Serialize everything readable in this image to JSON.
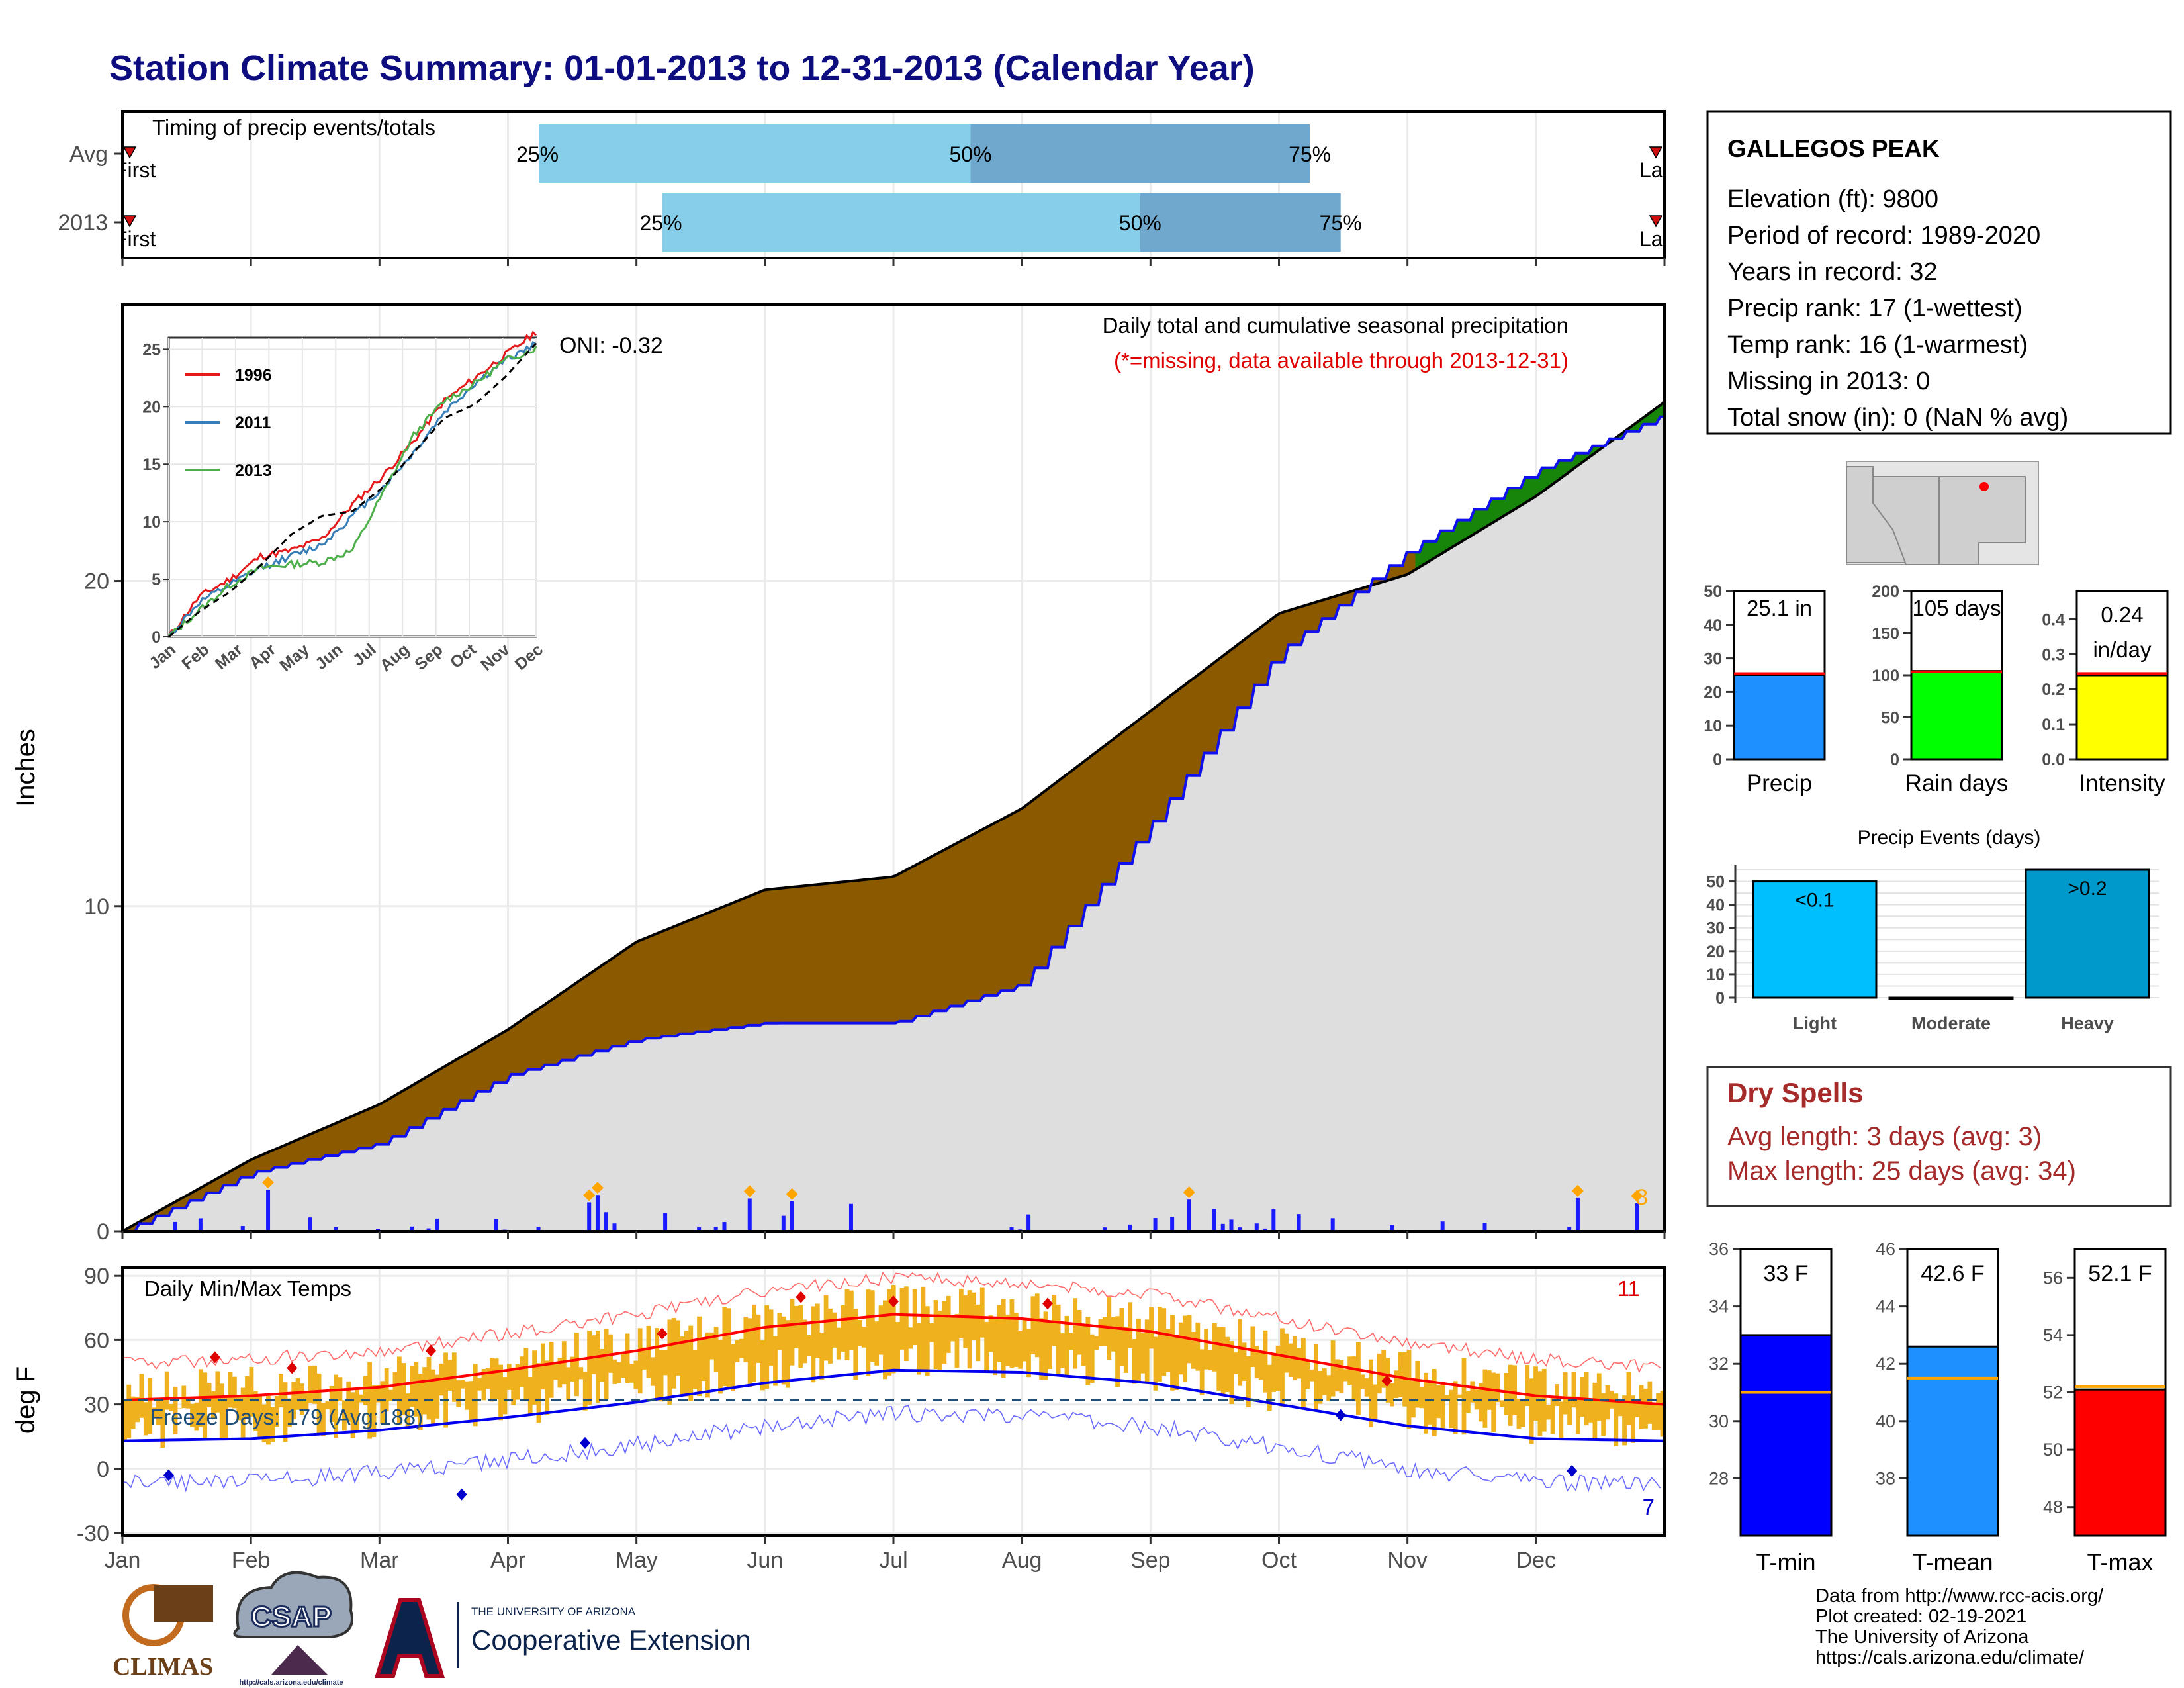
{
  "title": "Station Climate Summary: 01-01-2013 to 12-31-2013 (Calendar Year)",
  "timing_panel": {
    "label": "Timing of precip events/totals",
    "rows": [
      {
        "name": "Avg",
        "first": "First",
        "last": "Last",
        "p25": 0.27,
        "p50": 0.55,
        "p75": 0.77,
        "p25_label": "25%",
        "p50_label": "50%",
        "p75_label": "75%"
      },
      {
        "name": "2013",
        "first": "First",
        "last": "Last",
        "p25": 0.35,
        "p50": 0.66,
        "p75": 0.79,
        "p25_label": "25%",
        "p50_label": "50%",
        "p75_label": "75%"
      }
    ],
    "colors": {
      "light": "#87ceeb",
      "dark": "#6fa8cc",
      "marker": "#d01010"
    }
  },
  "station": {
    "name": "GALLEGOS PEAK",
    "lines": [
      "Elevation (ft): 9800",
      "Period of record: 1989-2020",
      "Years in record: 32",
      "Precip rank: 17 (1-wettest)",
      "Temp rank: 16 (1-warmest)",
      "Missing in 2013: 0",
      "Total snow (in): 0 (NaN % avg)"
    ]
  },
  "main_chart": {
    "ylabel": "Inches",
    "subtitle": "Daily total and cumulative seasonal precipitation",
    "missing_note": "(*=missing, data available through 2013-12-31)",
    "oni": "ONI: -0.32",
    "corner_count": "8",
    "yticks": [
      "0",
      "10",
      "20"
    ]
  },
  "inset": {
    "yticks": [
      "0",
      "5",
      "10",
      "15",
      "20",
      "25"
    ],
    "months": [
      "Jan",
      "Feb",
      "Mar",
      "Apr",
      "May",
      "Jun",
      "Jul",
      "Aug",
      "Sep",
      "Oct",
      "Nov",
      "Dec"
    ],
    "legend": [
      {
        "name": "1996",
        "color": "#e41a1c"
      },
      {
        "name": "2011",
        "color": "#377eb8"
      },
      {
        "name": "2013",
        "color": "#4daf4a"
      }
    ]
  },
  "temp_chart": {
    "ylabel": "deg F",
    "label": "Daily Min/Max Temps",
    "freeze": "Freeze Days: 179 (Avg:188)",
    "count_high": "11",
    "count_low": "7",
    "yticks": [
      "-30",
      "0",
      "30",
      "60",
      "90"
    ],
    "months": [
      "Jan",
      "Feb",
      "Mar",
      "Apr",
      "May",
      "Jun",
      "Jul",
      "Aug",
      "Sep",
      "Oct",
      "Nov",
      "Dec"
    ]
  },
  "gauges_top": [
    {
      "label": "Precip",
      "value_text": "25.1 in",
      "value": 25.1,
      "avg": 25.5,
      "min": 0,
      "max": 50,
      "ticks": [
        "0",
        "10",
        "20",
        "30",
        "40",
        "50"
      ],
      "color": "#1e90ff"
    },
    {
      "label": "Rain days",
      "value_text": "105 days",
      "value": 105,
      "avg": 104,
      "min": 0,
      "max": 200,
      "ticks": [
        "0",
        "50",
        "100",
        "150",
        "200"
      ],
      "color": "#00ff00"
    },
    {
      "label": "Intensity",
      "value_text": "0.24 in/day",
      "value_line1": "0.24",
      "value_line2": "in/day",
      "value": 0.24,
      "avg": 0.245,
      "min": 0,
      "max": 0.48,
      "ticks": [
        "0.0",
        "0.1",
        "0.2",
        "0.3",
        "0.4"
      ],
      "color": "#ffff00"
    }
  ],
  "precip_events": {
    "title": "Precip Events (days)",
    "categories": [
      "Light",
      "Moderate",
      "Heavy"
    ],
    "values": [
      50,
      0,
      55
    ],
    "bar_labels": [
      "<0.1",
      "",
      ">0.2"
    ],
    "yticks": [
      "0",
      "10",
      "20",
      "30",
      "40",
      "50"
    ],
    "colors": [
      "#00bfff",
      "#00bfff",
      "#0099cc"
    ]
  },
  "dry_spells": {
    "title": "Dry Spells",
    "avg_length": "Avg length: 3 days (avg: 3)",
    "max_length": "Max length: 25 days (avg: 34)"
  },
  "gauges_bottom": [
    {
      "label": "T-min",
      "value_text": "33 F",
      "value": 33,
      "avg": 31,
      "min": 26,
      "max": 36,
      "ticks": [
        "28",
        "30",
        "32",
        "34",
        "36"
      ],
      "color": "#0000ff"
    },
    {
      "label": "T-mean",
      "value_text": "42.6 F",
      "value": 42.6,
      "avg": 41.5,
      "min": 36,
      "max": 46,
      "ticks": [
        "38",
        "40",
        "42",
        "44",
        "46"
      ],
      "color": "#1e90ff"
    },
    {
      "label": "T-max",
      "value_text": "52.1 F",
      "value": 52.1,
      "avg": 52.2,
      "min": 47,
      "max": 57,
      "ticks": [
        "48",
        "50",
        "52",
        "54",
        "56"
      ],
      "color": "#ff0000"
    }
  ],
  "logos": {
    "climas": "CLIMAS",
    "csap": "CSAP",
    "csap_url": "http://cals.arizona.edu/climate",
    "ua_top": "THE UNIVERSITY OF ARIZONA",
    "ua_bottom": "Cooperative Extension"
  },
  "credits": [
    "Data from http://www.rcc-acis.org/",
    "Plot created: 02-19-2021",
    "The University of Arizona",
    "https://cals.arizona.edu/climate/"
  ],
  "chart_data": [
    {
      "type": "area",
      "title": "Daily total and cumulative seasonal precipitation",
      "ylabel": "Inches",
      "ylim": [
        0,
        25.5
      ],
      "x": [
        "Jan",
        "Feb",
        "Mar",
        "Apr",
        "May",
        "Jun",
        "Jul",
        "Aug",
        "Sep",
        "Oct",
        "Nov",
        "Dec",
        "Dec 31"
      ],
      "series": [
        {
          "name": "avg",
          "values": [
            0,
            2.2,
            3.9,
            6.2,
            8.9,
            10.5,
            10.9,
            13.0,
            16.0,
            19.0,
            20.2,
            22.6,
            25.5
          ]
        },
        {
          "name": "2013",
          "values": [
            0,
            1.8,
            2.7,
            4.8,
            5.9,
            6.4,
            6.4,
            7.6,
            12.5,
            17.8,
            20.9,
            23.4,
            25.1
          ]
        }
      ]
    },
    {
      "type": "line",
      "title": "Daily Min/Max Temps",
      "ylabel": "deg F",
      "ylim": [
        -30,
        90
      ],
      "x": [
        "Jan",
        "Feb",
        "Mar",
        "Apr",
        "May",
        "Jun",
        "Jul",
        "Aug",
        "Sep",
        "Oct",
        "Nov",
        "Dec",
        "Dec 31"
      ],
      "series": [
        {
          "name": "avg max",
          "values": [
            32,
            34,
            38,
            46,
            55,
            66,
            72,
            70,
            64,
            53,
            42,
            34,
            30
          ]
        },
        {
          "name": "avg min",
          "values": [
            13,
            14,
            18,
            24,
            31,
            40,
            46,
            45,
            40,
            30,
            20,
            14,
            13
          ]
        }
      ]
    },
    {
      "type": "line",
      "x": [
        "Jan",
        "Feb",
        "Mar",
        "Apr",
        "May",
        "Jun",
        "Jul",
        "Aug",
        "Sep",
        "Oct",
        "Nov",
        "Dec",
        "Dec 31"
      ],
      "series": [
        {
          "name": "1996",
          "values": [
            0,
            3.5,
            5.0,
            7.0,
            7.5,
            8.5,
            11.5,
            14.0,
            17.0,
            20.5,
            22.5,
            24.5,
            26.5
          ]
        },
        {
          "name": "2011",
          "values": [
            0,
            3.0,
            4.5,
            6.0,
            7.0,
            8.0,
            10.5,
            13.0,
            16.0,
            19.5,
            22.0,
            24.0,
            25.5
          ]
        },
        {
          "name": "2013",
          "values": [
            0,
            2.3,
            4.5,
            6.0,
            6.3,
            6.5,
            7.5,
            12.5,
            17.5,
            20.5,
            22.0,
            24.0,
            25.1
          ]
        },
        {
          "name": "avg",
          "values": [
            0,
            2.2,
            3.9,
            6.2,
            8.9,
            10.5,
            10.9,
            13.0,
            16.0,
            19.0,
            20.2,
            22.6,
            25.5
          ]
        }
      ]
    }
  ]
}
